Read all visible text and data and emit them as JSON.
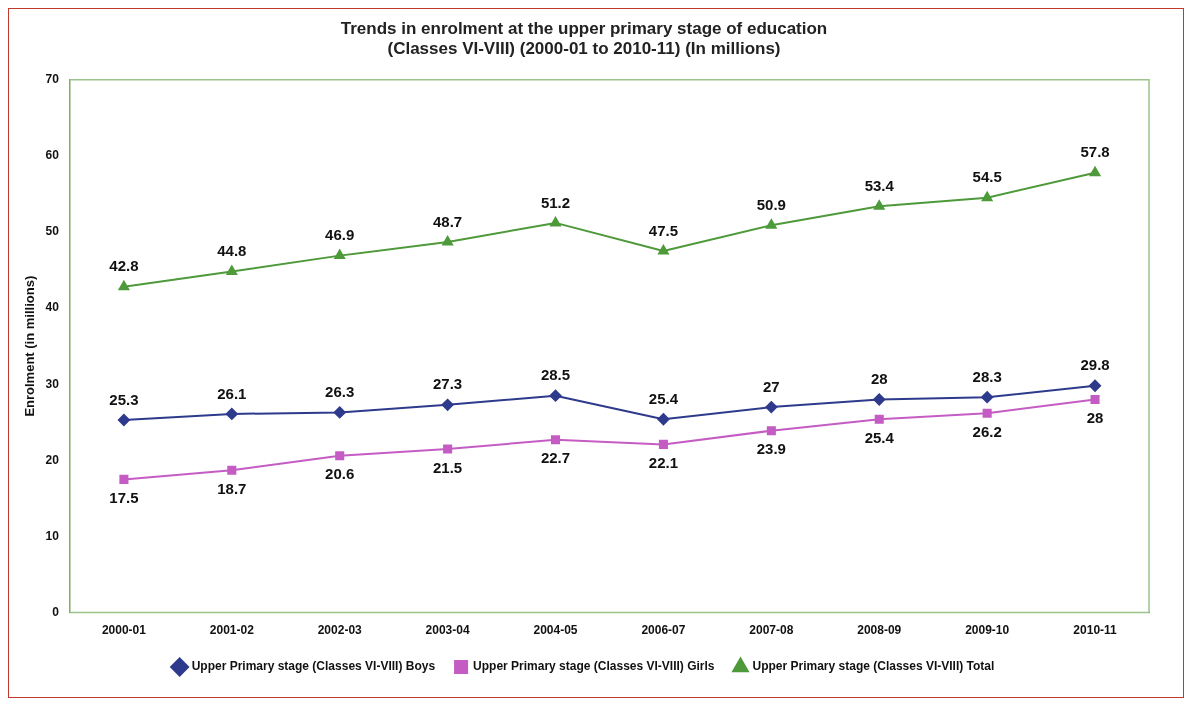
{
  "chart_data": {
    "type": "line",
    "title": [
      "Trends in enrolment at the upper primary stage of education",
      "(Classes VI-VIII) (2000-01 to 2010-11) (In millions)"
    ],
    "ylabel": "Enrolment (in millions)",
    "categories": [
      "2000-01",
      "2001-02",
      "2002-03",
      "2003-04",
      "2004-05",
      "2006-07",
      "2007-08",
      "2008-09",
      "2009-10",
      "2010-11"
    ],
    "series": [
      {
        "name": "Upper Primary stage (Classes VI-VIII) Boys",
        "color": "#2e3a8c",
        "marker": "diamond",
        "values": [
          25.3,
          26.1,
          26.3,
          27.3,
          28.5,
          25.4,
          27,
          28,
          28.3,
          29.8
        ]
      },
      {
        "name": "Upper Primary stage (Classes VI-VIII) Girls",
        "color": "#c45cc4",
        "marker": "square",
        "values": [
          17.5,
          18.7,
          20.6,
          21.5,
          22.7,
          22.1,
          23.9,
          25.4,
          26.2,
          28
        ]
      },
      {
        "name": "Upper Primary stage (Classes VI-VIII) Total",
        "color": "#4e9a3a",
        "marker": "triangle",
        "values": [
          42.8,
          44.8,
          46.9,
          48.7,
          51.2,
          47.5,
          50.9,
          53.4,
          54.5,
          57.8
        ]
      }
    ],
    "ylim": [
      0,
      70
    ],
    "yticks": [
      0,
      10,
      20,
      30,
      40,
      50,
      60,
      70
    ],
    "grid": false,
    "legend": "bottom",
    "data_labels": true,
    "line_style": "solid"
  }
}
